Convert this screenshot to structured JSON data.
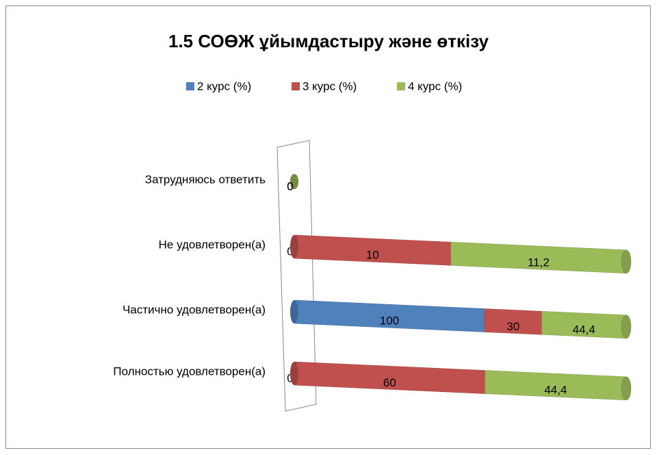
{
  "chart_data": {
    "type": "bar",
    "orientation": "horizontal",
    "stacking": "percent",
    "title": "1.5 СОӨЖ ұйымдастыру және өткізу",
    "categories": [
      "Полностью удовлетворен(а)",
      "Частично удовлетворен(а)",
      "Не удовлетворен(а)",
      "Затрудняюсь ответить"
    ],
    "series": [
      {
        "name": "2 курс (%)",
        "color": "#4f81bd",
        "values": [
          0,
          100,
          0,
          0
        ],
        "value_labels": [
          "0",
          "100",
          "0",
          "0"
        ]
      },
      {
        "name": "3 курс (%)",
        "color": "#c0504d",
        "values": [
          60,
          30,
          10,
          0
        ],
        "value_labels": [
          "60",
          "30",
          "10",
          "0"
        ]
      },
      {
        "name": "4 курс (%)",
        "color": "#9bbb59",
        "values": [
          44.4,
          44.4,
          11.2,
          0
        ],
        "value_labels": [
          "44,4",
          "44,4",
          "11,2",
          "0"
        ]
      }
    ],
    "legend": "top"
  }
}
